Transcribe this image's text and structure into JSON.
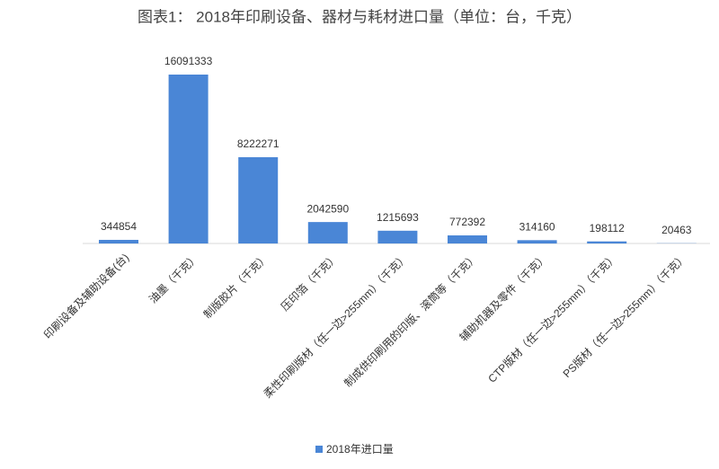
{
  "chart_data": {
    "type": "bar",
    "title": "图表1： 2018年印刷设备、器材与耗材进口量（单位：台，千克）",
    "categories": [
      "印刷设备及辅助设备(台)",
      "油墨（千克）",
      "制版胶片（千克）",
      "压印箔（千克）",
      "柔性印刷版材（任一边>255mm）（千克）",
      "制成供印刷用的印版、滚筒等（千克）",
      "辅助机器及零件（千克）",
      "CTP版材（任一边>255mm）（千克）",
      "PS版材（任一边>255mm）（千克）"
    ],
    "series": [
      {
        "name": "2018年进口量",
        "color": "#4a86d6",
        "values": [
          344854,
          16091333,
          8222271,
          2042590,
          1215693,
          772392,
          314160,
          198112,
          20463
        ]
      }
    ],
    "legend": "bottom"
  }
}
